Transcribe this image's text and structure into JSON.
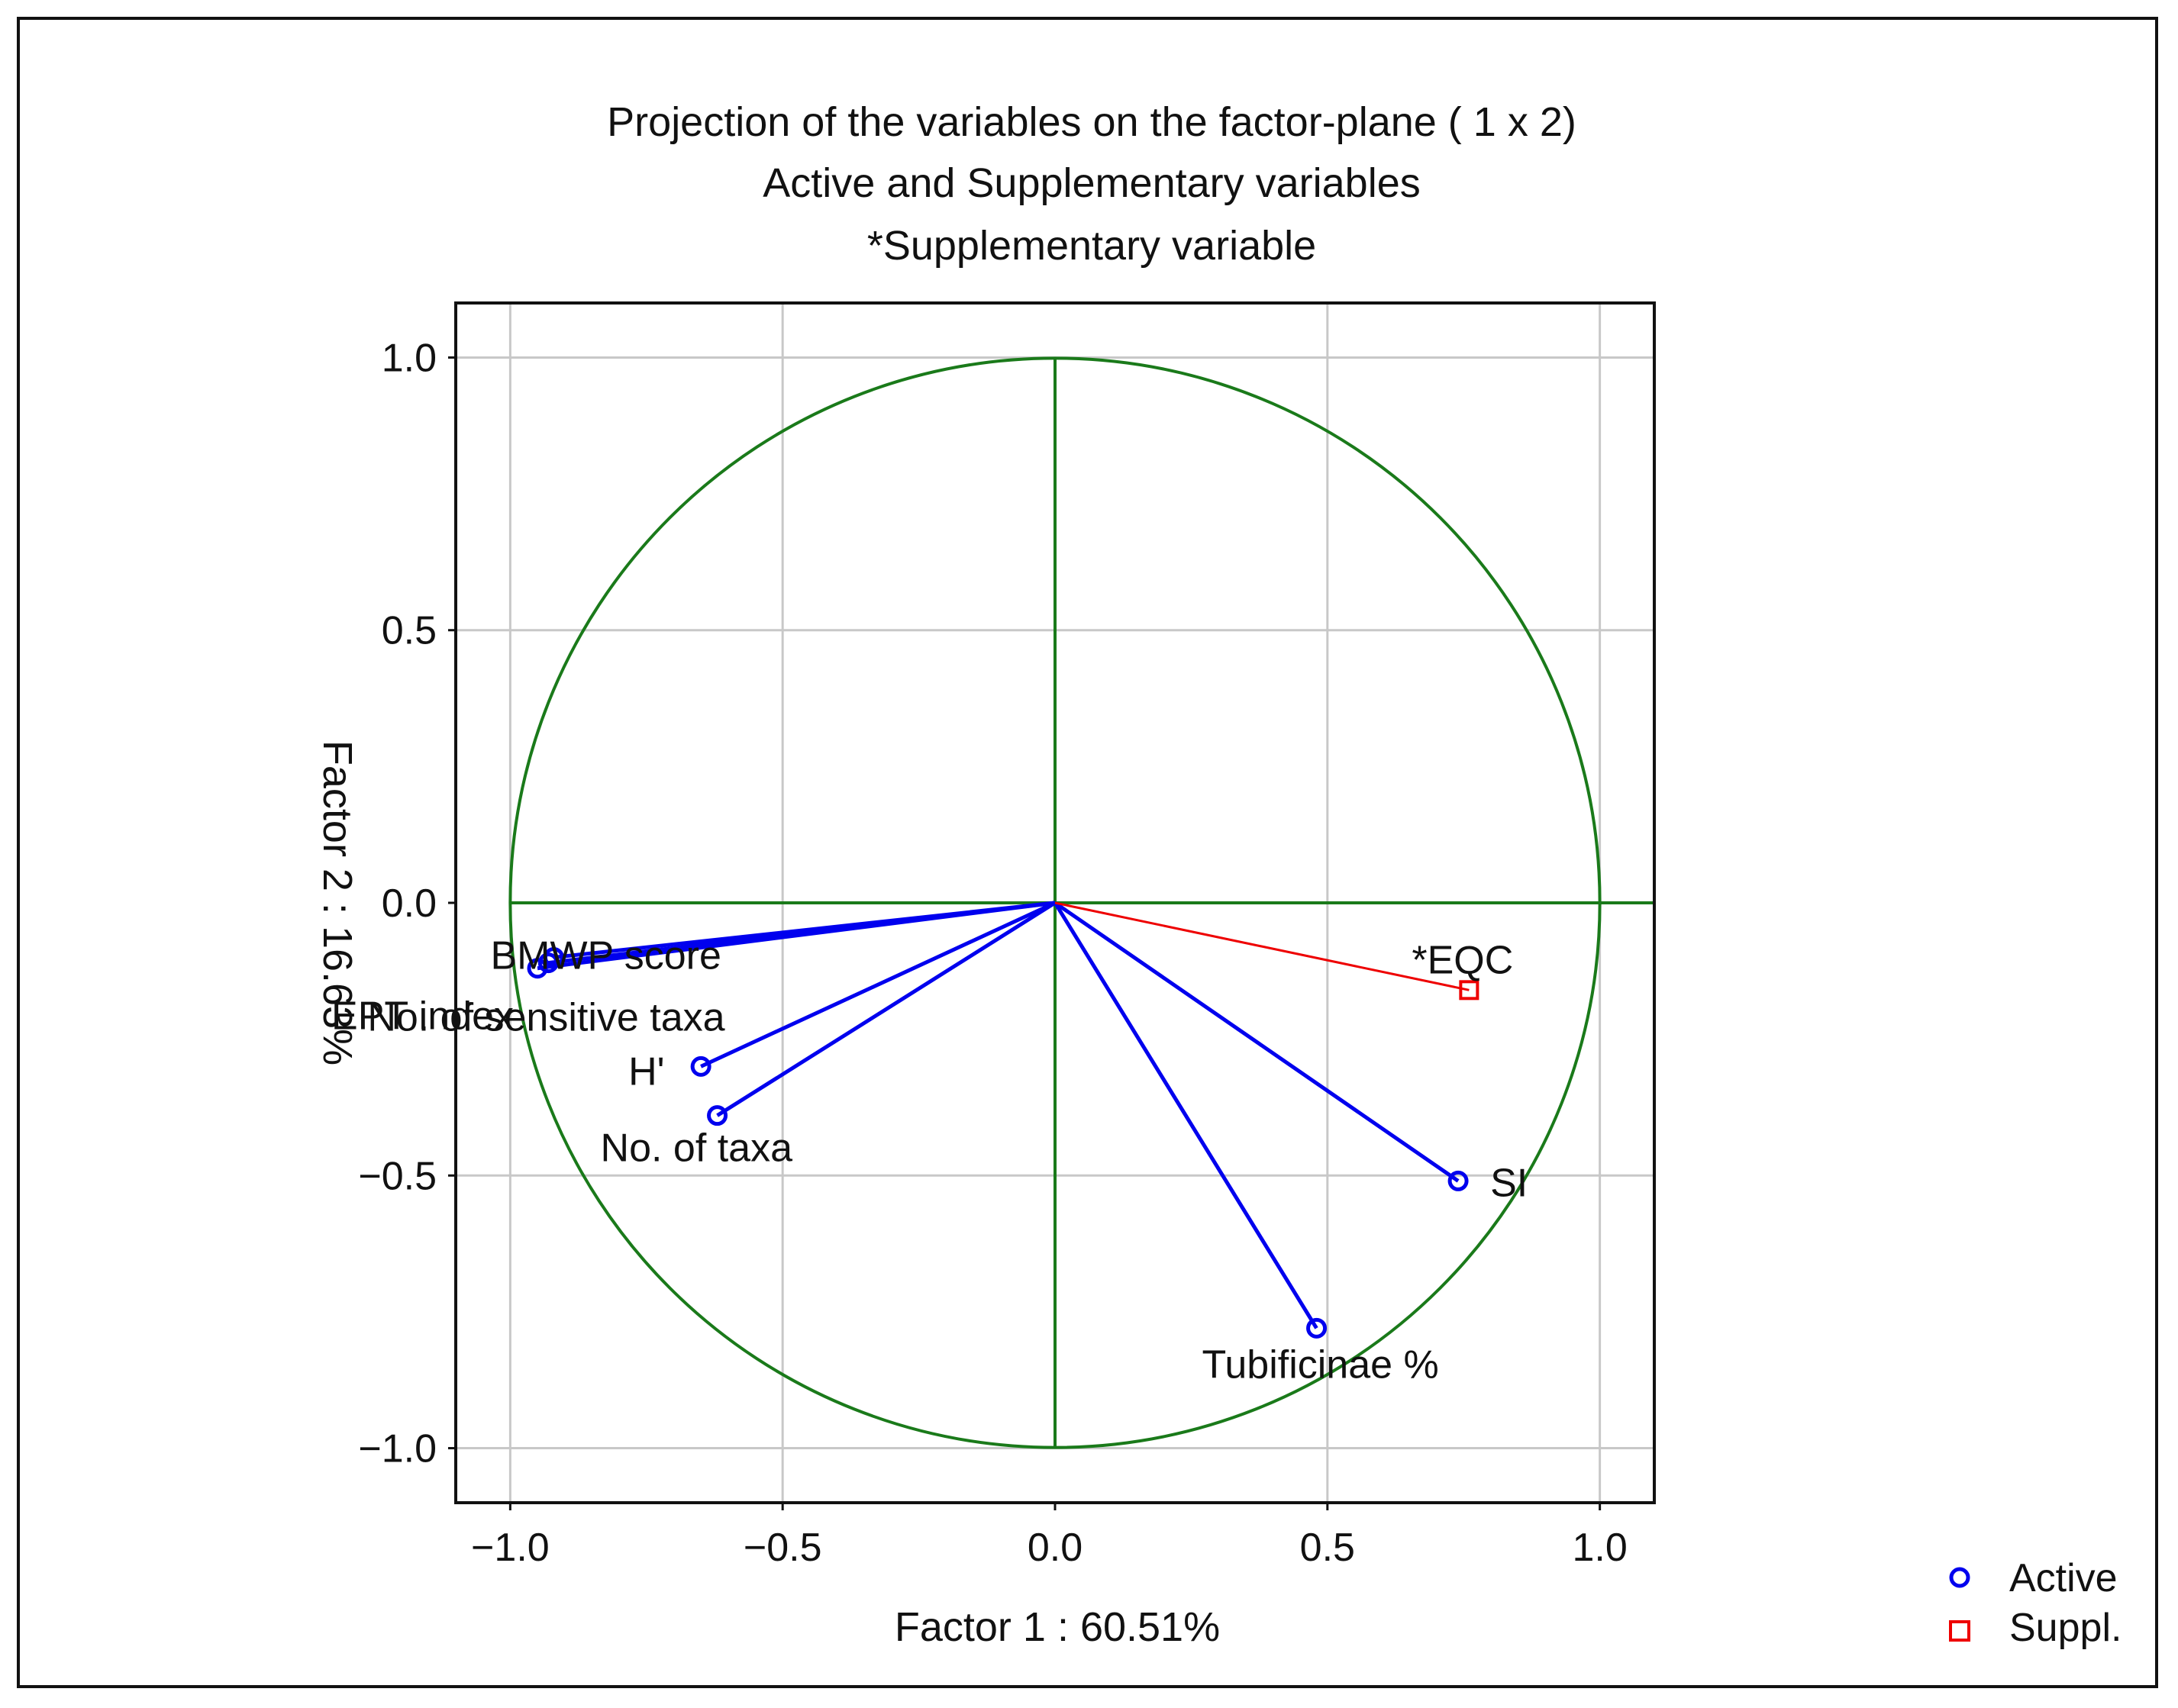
{
  "chart_data": {
    "type": "scatter",
    "title": [
      "Projection of the variables on the factor-plane (  1 x   2)",
      "Active and Supplementary variables",
      "*Supplementary variable"
    ],
    "xlabel": "Factor 1 : 60.51%",
    "ylabel": "Factor 2 : 16.63%",
    "xlim": [
      -1.1,
      1.1
    ],
    "ylim": [
      -1.1,
      1.1
    ],
    "xticks": [
      -1.0,
      -0.5,
      0.0,
      0.5,
      1.0
    ],
    "yticks": [
      1.0,
      0.5,
      0.0,
      -0.5,
      -1.0
    ],
    "xtick_labels": [
      "−1.0",
      "−0.5",
      "0.0",
      "0.5",
      "1.0"
    ],
    "ytick_labels": [
      "1.0",
      "0.5",
      "0.0",
      "−0.5",
      "−1.0"
    ],
    "grid": true,
    "unit_circle": true,
    "legend_position": "bottom-right",
    "colors": {
      "active": "#0000ee",
      "supplementary": "#ee0000",
      "circle": "#1a7a1a",
      "grid": "#c8c8c8"
    },
    "series": [
      {
        "name": "Active",
        "points": [
          {
            "label": "BMWP score",
            "x": -0.92,
            "y": -0.1
          },
          {
            "label": "EPT index",
            "x": -0.95,
            "y": -0.12
          },
          {
            "label": "No. of sensitive taxa",
            "x": -0.93,
            "y": -0.11
          },
          {
            "label": "H'",
            "x": -0.65,
            "y": -0.3
          },
          {
            "label": "No. of taxa",
            "x": -0.62,
            "y": -0.39
          },
          {
            "label": "SI",
            "x": 0.74,
            "y": -0.51
          },
          {
            "label": "Tubificinae %",
            "x": 0.48,
            "y": -0.78
          }
        ]
      },
      {
        "name": "Suppl.",
        "points": [
          {
            "label": "*EQC",
            "x": 0.76,
            "y": -0.16
          }
        ]
      }
    ]
  }
}
